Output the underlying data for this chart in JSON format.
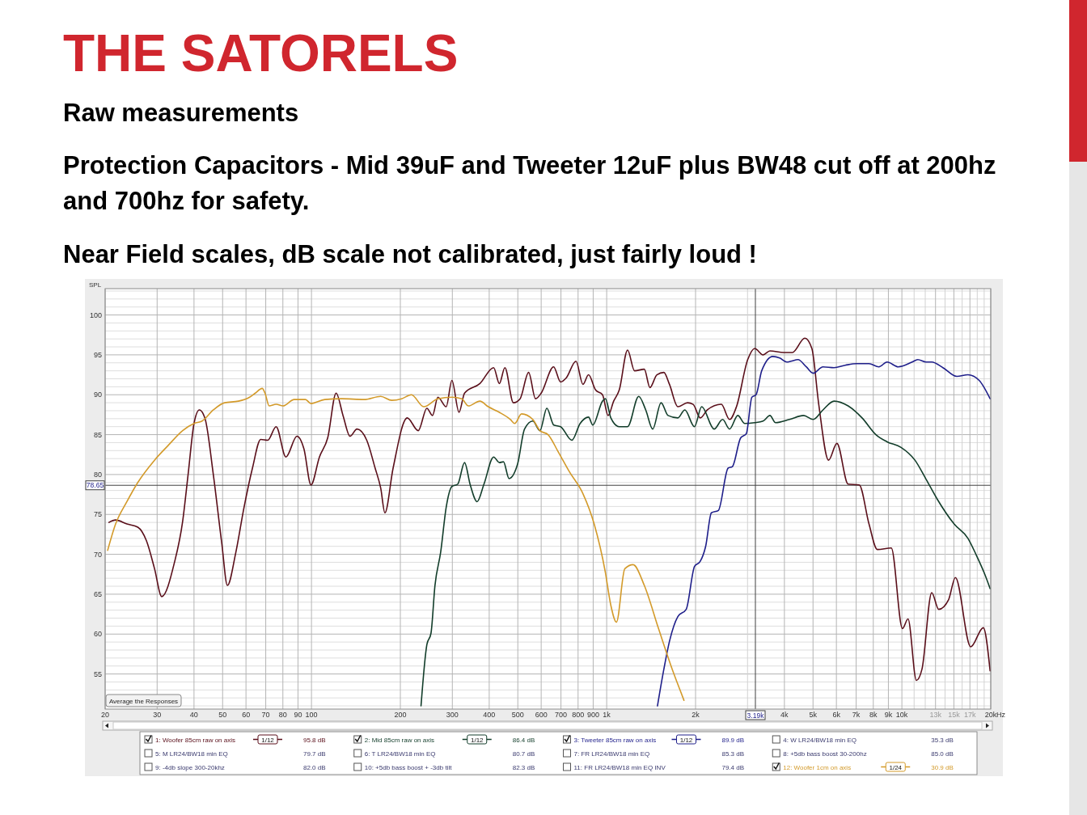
{
  "chart_data": {
    "type": "line",
    "title": "THE SATORELS",
    "subtitle": "Raw measurements",
    "ylabel": "SPL",
    "log": "x",
    "grid": true,
    "legend": "bottom",
    "xlim": [
      20,
      20000
    ],
    "ylim": [
      50.6,
      103.3
    ],
    "xticks": [
      20,
      30,
      40,
      50,
      60,
      70,
      80,
      90,
      100,
      200,
      300,
      400,
      500,
      600,
      700,
      800,
      900,
      {
        "value": 1000,
        "label": "1k"
      },
      {
        "value": 2000,
        "label": "2k"
      },
      {
        "value": 3000,
        "label": null
      },
      {
        "value": 4000,
        "label": "4k"
      },
      {
        "value": 5000,
        "label": "5k"
      },
      {
        "value": 6000,
        "label": "6k"
      },
      {
        "value": 7000,
        "label": "7k"
      },
      {
        "value": 8000,
        "label": "8k"
      },
      {
        "value": 9000,
        "label": "9k"
      },
      {
        "value": 10000,
        "label": "10k"
      },
      {
        "value": 11000,
        "label": null
      },
      {
        "value": 12000,
        "label": null
      },
      {
        "value": 13000,
        "label": "13k"
      },
      {
        "value": 14000,
        "label": null
      },
      {
        "value": 15000,
        "label": "15k"
      },
      {
        "value": 16000,
        "label": null
      },
      {
        "value": 17000,
        "label": "17k"
      },
      {
        "value": 18000,
        "label": null
      },
      {
        "value": 19000,
        "label": null
      },
      {
        "value": 20000,
        "label": "20k"
      }
    ],
    "xlabel": "Hz",
    "yticks": [
      {
        "value": 51,
        "label": null
      },
      {
        "value": 52,
        "label": null
      },
      {
        "value": 53,
        "label": null
      },
      {
        "value": 54,
        "label": null
      },
      55,
      {
        "value": 56,
        "label": null
      },
      {
        "value": 57,
        "label": null
      },
      {
        "value": 58,
        "label": null
      },
      {
        "value": 59,
        "label": null
      },
      60,
      {
        "value": 61,
        "label": null
      },
      {
        "value": 62,
        "label": null
      },
      {
        "value": 63,
        "label": null
      },
      {
        "value": 64,
        "label": null
      },
      65,
      {
        "value": 66,
        "label": null
      },
      {
        "value": 67,
        "label": null
      },
      {
        "value": 68,
        "label": null
      },
      {
        "value": 69,
        "label": null
      },
      70,
      {
        "value": 71,
        "label": null
      },
      {
        "value": 72,
        "label": null
      },
      {
        "value": 73,
        "label": null
      },
      {
        "value": 74,
        "label": null
      },
      75,
      {
        "value": 76,
        "label": null
      },
      {
        "value": 77,
        "label": null
      },
      {
        "value": 78,
        "label": null
      },
      {
        "value": 79,
        "label": null
      },
      80,
      {
        "value": 81,
        "label": null
      },
      {
        "value": 82,
        "label": null
      },
      {
        "value": 83,
        "label": null
      },
      {
        "value": 84,
        "label": null
      },
      85,
      {
        "value": 86,
        "label": null
      },
      {
        "value": 87,
        "label": null
      },
      {
        "value": 88,
        "label": null
      },
      {
        "value": 89,
        "label": null
      },
      90,
      {
        "value": 91,
        "label": null
      },
      {
        "value": 92,
        "label": null
      },
      {
        "value": 93,
        "label": null
      },
      {
        "value": 94,
        "label": null
      },
      95,
      {
        "value": 96,
        "label": null
      },
      {
        "value": 97,
        "label": null
      },
      {
        "value": 98,
        "label": null
      },
      {
        "value": 99,
        "label": null
      },
      100,
      {
        "value": 101,
        "label": null
      },
      {
        "value": 102,
        "label": null
      },
      {
        "value": 103,
        "label": null
      }
    ],
    "ref_lines": [
      {
        "axis": "y",
        "value": 78.65,
        "label": "78.65",
        "color": "#404040"
      },
      {
        "axis": "x",
        "value": 3190,
        "label": "3.19k",
        "color": "#404040"
      }
    ],
    "annotations": [
      "Protection Capacitors - Mid 39uF and  Tweeter 12uF plus BW48 cut off at 200hz and 700hz for safety.",
      "Near Field scales, dB scale not calibrated, just fairly loud !",
      "Average the Responses",
      "95.8 dB",
      "86.4 dB",
      "89.9 dB",
      "30.9 dB",
      "1/12",
      "1/12",
      "1/12",
      "1/24",
      "4: W LR24/BW18 min EQ",
      "35.3 dB",
      "5: M LR24/BW18 min EQ",
      "79.7 dB",
      "6: T LR24/BW18 min EQ",
      "80.7 dB",
      "7: FR LR24/BW18 min EQ",
      "85.3 dB",
      "8: +5db bass boost 30-200hz",
      "85.0 dB",
      "9: -4db slope 300-20khz",
      "82.0 dB",
      "10: +5db bass boost + -3db tilt",
      "82.3 dB",
      "11: FR LR24/BW18 min EQ INV",
      "79.4 dB"
    ],
    "series": [
      {
        "name": "1: Woofer 85cm raw on axis",
        "color": "#5a0f1a",
        "x": [
          20.6,
          21.7,
          23.7,
          25.8,
          27.6,
          29.4,
          31.1,
          34.3,
          36.6,
          38.2,
          40,
          41.7,
          43.6,
          46.5,
          49.7,
          51.9,
          55.4,
          59.1,
          63.1,
          67.3,
          71.1,
          75.9,
          81.9,
          89.3,
          94.3,
          99.6,
          106.4,
          113.5,
          121.2,
          127.9,
          135.1,
          142.6,
          153.9,
          164.3,
          171.6,
          177.3,
          189,
          211,
          230,
          246,
          257,
          268,
          286,
          299,
          316,
          330,
          372,
          414,
          433,
          452,
          483,
          509,
          544,
          574,
          600,
          661,
          698,
          729,
          787,
          831,
          868,
          917,
          968,
          1011,
          1056,
          1103,
          1177,
          1243,
          1341,
          1401,
          1479,
          1562,
          1632,
          1742,
          1879,
          1963,
          2075,
          2193,
          2445,
          2608,
          2752,
          3004,
          3172,
          3387,
          3573,
          3984,
          4254,
          4691,
          4955,
          5228,
          5645,
          6024,
          6575,
          7170,
          7737,
          8259,
          9206,
          10044,
          10490,
          11198,
          11696,
          12620,
          13325,
          14388,
          15180,
          17104,
          18872,
          19900
        ],
        "values": [
          74.0,
          74.3,
          73.8,
          73.4,
          71.7,
          68.2,
          64.7,
          68.9,
          74.1,
          80,
          86.4,
          88.1,
          87,
          80,
          71.3,
          66.1,
          70.2,
          75.9,
          80.8,
          84.4,
          84.3,
          86,
          82.2,
          84.8,
          83.2,
          78.7,
          82.2,
          84.6,
          90.2,
          87.4,
          84.8,
          85.7,
          84.3,
          80.8,
          78.3,
          75.2,
          80.8,
          87.1,
          85.5,
          88.3,
          87.4,
          89.7,
          88.5,
          91.8,
          87.8,
          90.2,
          91.4,
          93.4,
          91.4,
          93.4,
          89,
          89.5,
          92.8,
          89.5,
          90.2,
          93.5,
          91.6,
          92.1,
          94.2,
          91.3,
          92.5,
          90.6,
          90,
          87.4,
          89.2,
          90.6,
          95.6,
          93,
          93.2,
          90.9,
          92.5,
          92.8,
          91.3,
          88.5,
          89,
          88.8,
          87.1,
          88.1,
          88.8,
          86.9,
          88.5,
          94.4,
          95.8,
          95,
          95.5,
          95.3,
          95.3,
          97.1,
          95.8,
          88.8,
          81.8,
          83.9,
          78.8,
          78.7,
          73.8,
          70.6,
          70.8,
          60.7,
          61.9,
          54.2,
          55.6,
          65.2,
          63.1,
          64.3,
          67.1,
          58.4,
          60.8,
          55.4
        ]
      },
      {
        "name": "2: Mid 85cm raw on axis",
        "color": "#123d2a",
        "x": [
          235,
          246,
          254,
          262,
          274,
          286,
          299,
          313,
          330,
          345,
          364,
          384,
          414,
          433,
          447,
          467,
          499,
          527,
          562,
          594,
          627,
          662,
          698,
          762,
          813,
          868,
          897,
          968,
          990,
          1033,
          1103,
          1177,
          1284,
          1356,
          1432,
          1528,
          1614,
          1742,
          1839,
          1983,
          2098,
          2312,
          2470,
          2608,
          2781,
          2937,
          3172,
          3387,
          3573,
          3733,
          4161,
          4645,
          5008,
          5404,
          5892,
          6575,
          7330,
          8167,
          8911,
          9935,
          11072,
          12080,
          13180,
          15027,
          16740,
          17870,
          19090,
          19900
        ],
        "values": [
          51.0,
          58.7,
          60.1,
          66.1,
          70.3,
          75.9,
          78.5,
          78.8,
          81.5,
          78.7,
          76.6,
          78.8,
          82.2,
          81.5,
          81.6,
          79.5,
          81.3,
          85.7,
          86.7,
          85.5,
          88.3,
          86.2,
          86,
          84.3,
          86.4,
          87.2,
          86.2,
          89.2,
          89.5,
          87.1,
          86,
          86,
          89.8,
          88.1,
          85.7,
          89,
          87.4,
          87.1,
          88.1,
          86,
          88.5,
          85.7,
          86.9,
          85.7,
          87.4,
          86.4,
          86.5,
          86.7,
          87.4,
          86.5,
          86.9,
          87.4,
          86.9,
          88.1,
          89.2,
          88.6,
          87.1,
          85,
          84.1,
          83.4,
          81.8,
          79.4,
          76.9,
          73.8,
          72,
          69.9,
          67.5,
          65.7
        ]
      },
      {
        "name": "3: Tweeter 85cm raw on axis",
        "color": "#1f1f8a",
        "x": [
          1486,
          1562,
          1632,
          1742,
          1859,
          1985,
          2073,
          2164,
          2263,
          2390,
          2578,
          2666,
          2844,
          2971,
          3104,
          3206,
          3350,
          3654,
          3856,
          4074,
          4207,
          4446,
          4744,
          5008,
          5404,
          5892,
          6430,
          7017,
          7737,
          8356,
          8911,
          9721,
          10836,
          11319,
          12080,
          12620,
          13770,
          15350,
          16740,
          18270,
          19900
        ],
        "values": [
          51.0,
          55.6,
          59.1,
          62.2,
          63.1,
          68.5,
          69.1,
          71,
          75.2,
          75.5,
          80.8,
          81,
          84.6,
          85.1,
          89.7,
          90,
          93,
          94.8,
          94.6,
          94.1,
          94.2,
          94.4,
          93.5,
          92.7,
          93.5,
          93.4,
          93.7,
          93.9,
          93.9,
          93.5,
          94.1,
          93.5,
          94.1,
          94.4,
          94.1,
          94.1,
          93.4,
          92.3,
          92.5,
          91.8,
          89.5
        ]
      },
      {
        "name": "12: Woofer 1cm on axis",
        "color": "#d39a2a",
        "x": [
          20.4,
          21.7,
          23.7,
          25.8,
          29.4,
          32.8,
          36.6,
          40,
          42.6,
          46.5,
          50.8,
          56.6,
          61.7,
          64.5,
          68.1,
          69.6,
          71.9,
          75.9,
          80.1,
          87.4,
          95.4,
          99.6,
          111,
          126.6,
          150.6,
          171.6,
          187.1,
          202,
          218,
          240,
          268,
          299,
          323,
          340,
          372,
          397,
          433,
          472,
          488,
          515,
          562,
          594,
          633,
          684,
          746,
          831,
          907,
          989,
          1033,
          1079,
          1152,
          1229,
          1341,
          1495,
          1667,
          1780,
          1827
        ],
        "values": [
          70.5,
          73.8,
          76.6,
          79,
          81.8,
          83.7,
          85.5,
          86.4,
          86.7,
          88.1,
          89,
          89.2,
          89.7,
          90.2,
          90.8,
          90.2,
          88.6,
          88.8,
          88.6,
          89.4,
          89.4,
          88.9,
          89.4,
          89.5,
          89.4,
          89.8,
          89.3,
          89.5,
          90,
          88.5,
          89.5,
          89.7,
          89.5,
          88.6,
          89.2,
          88.5,
          87.8,
          86.9,
          86.4,
          87.6,
          86.9,
          85.5,
          85,
          82.9,
          80.4,
          77.6,
          73.8,
          67.8,
          63.6,
          61.5,
          68.2,
          68.7,
          66.1,
          60.8,
          55.6,
          52.8,
          51.7
        ]
      }
    ]
  }
}
